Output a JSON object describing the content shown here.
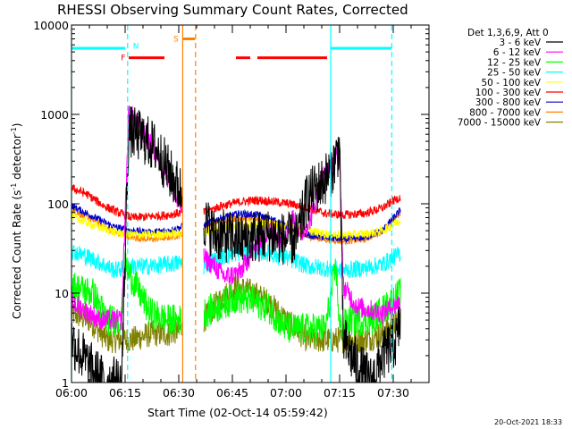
{
  "chart_data": {
    "type": "line",
    "title": "RHESSI Observing Summary Count Rates, Corrected",
    "xlabel": "Start Time (02-Oct-14 05:59:42)",
    "ylabel": "Corrected Count Rate (s⁻¹ detector⁻¹)",
    "ylabel_main": "Corrected Count Rate (s",
    "ylabel_mid": " detector",
    "ylabel_end": ")",
    "ylabel_sup": "-1",
    "y_scale": "log",
    "ylim": [
      1,
      10000
    ],
    "xlim_min": [
      0,
      100
    ],
    "x_ticks": [
      {
        "label": "06:00",
        "min": 0
      },
      {
        "label": "06:15",
        "min": 15
      },
      {
        "label": "06:30",
        "min": 30
      },
      {
        "label": "06:45",
        "min": 45
      },
      {
        "label": "07:00",
        "min": 60
      },
      {
        "label": "07:15",
        "min": 75
      },
      {
        "label": "07:30",
        "min": 90
      }
    ],
    "y_ticks": [
      {
        "label": "1",
        "v": 1
      },
      {
        "label": "10",
        "v": 10
      },
      {
        "label": "100",
        "v": 100
      },
      {
        "label": "1000",
        "v": 1000
      },
      {
        "label": "10000",
        "v": 10000
      }
    ],
    "legend_header": "Det 1,3,6,9, Att 0",
    "legend_position": "right, outside plot",
    "gaps_min": [
      [
        31,
        37
      ]
    ],
    "series": [
      {
        "name": "3 - 6 keV",
        "color": "#000000",
        "noise": 0.3,
        "points": [
          [
            0,
            3
          ],
          [
            5,
            1.5
          ],
          [
            9,
            1
          ],
          [
            14,
            1
          ],
          [
            16,
            650
          ],
          [
            20,
            550
          ],
          [
            24,
            400
          ],
          [
            28,
            200
          ],
          [
            31,
            130
          ],
          [
            37,
            65
          ],
          [
            40,
            45
          ],
          [
            48,
            40
          ],
          [
            55,
            45
          ],
          [
            60,
            40
          ],
          [
            63,
            40
          ],
          [
            66,
            120
          ],
          [
            70,
            170
          ],
          [
            73,
            250
          ],
          [
            75,
            450
          ],
          [
            76,
            3
          ],
          [
            80,
            1.5
          ],
          [
            84,
            1
          ],
          [
            87,
            2
          ],
          [
            91,
            3
          ],
          [
            92,
            5
          ]
        ]
      },
      {
        "name": "6 - 12 keV",
        "color": "#ff00ff",
        "noise": 0.12,
        "points": [
          [
            0,
            8
          ],
          [
            8,
            5
          ],
          [
            14,
            5
          ],
          [
            16,
            1100
          ],
          [
            19,
            700
          ],
          [
            23,
            400
          ],
          [
            27,
            200
          ],
          [
            30,
            95
          ],
          [
            31,
            90
          ],
          [
            37,
            25
          ],
          [
            40,
            20
          ],
          [
            43,
            15
          ],
          [
            47,
            17
          ],
          [
            51,
            30
          ],
          [
            55,
            50
          ],
          [
            59,
            40
          ],
          [
            62,
            70
          ],
          [
            64,
            45
          ],
          [
            67,
            70
          ],
          [
            70,
            200
          ],
          [
            73,
            250
          ],
          [
            75,
            420
          ],
          [
            76,
            12
          ],
          [
            80,
            7
          ],
          [
            87,
            6
          ],
          [
            92,
            8
          ]
        ]
      },
      {
        "name": "12 - 25 keV",
        "color": "#00ff00",
        "noise": 0.18,
        "points": [
          [
            0,
            12
          ],
          [
            6,
            10
          ],
          [
            10,
            5
          ],
          [
            14,
            5
          ],
          [
            15,
            20
          ],
          [
            18,
            12
          ],
          [
            22,
            6
          ],
          [
            27,
            5
          ],
          [
            31,
            5
          ],
          [
            37,
            6
          ],
          [
            41,
            7
          ],
          [
            46,
            9
          ],
          [
            51,
            8
          ],
          [
            55,
            7
          ],
          [
            60,
            4
          ],
          [
            66,
            4
          ],
          [
            71,
            4
          ],
          [
            74,
            20
          ],
          [
            75,
            4
          ],
          [
            78,
            5
          ],
          [
            84,
            5
          ],
          [
            88,
            7
          ],
          [
            92,
            10
          ]
        ]
      },
      {
        "name": "25 - 50 keV",
        "color": "#00ffff",
        "noise": 0.1,
        "points": [
          [
            0,
            30
          ],
          [
            6,
            24
          ],
          [
            12,
            18
          ],
          [
            17,
            20
          ],
          [
            22,
            20
          ],
          [
            27,
            21
          ],
          [
            31,
            22
          ],
          [
            37,
            20
          ],
          [
            41,
            25
          ],
          [
            46,
            28
          ],
          [
            51,
            30
          ],
          [
            55,
            28
          ],
          [
            60,
            25
          ],
          [
            66,
            20
          ],
          [
            71,
            19
          ],
          [
            76,
            18
          ],
          [
            82,
            19
          ],
          [
            87,
            21
          ],
          [
            92,
            28
          ]
        ]
      },
      {
        "name": "50 - 100 keV",
        "color": "#ffff00",
        "noise": 0.05,
        "points": [
          [
            0,
            72
          ],
          [
            6,
            58
          ],
          [
            12,
            48
          ],
          [
            17,
            45
          ],
          [
            22,
            45
          ],
          [
            27,
            46
          ],
          [
            31,
            47
          ],
          [
            37,
            47
          ],
          [
            42,
            55
          ],
          [
            47,
            58
          ],
          [
            52,
            60
          ],
          [
            57,
            60
          ],
          [
            61,
            55
          ],
          [
            66,
            50
          ],
          [
            71,
            46
          ],
          [
            76,
            45
          ],
          [
            82,
            46
          ],
          [
            87,
            50
          ],
          [
            92,
            65
          ]
        ]
      },
      {
        "name": "100 - 300 keV",
        "color": "#ff0000",
        "noise": 0.05,
        "points": [
          [
            0,
            150
          ],
          [
            4,
            130
          ],
          [
            9,
            95
          ],
          [
            13,
            80
          ],
          [
            17,
            70
          ],
          [
            22,
            72
          ],
          [
            27,
            75
          ],
          [
            31,
            80
          ],
          [
            37,
            80
          ],
          [
            42,
            95
          ],
          [
            47,
            105
          ],
          [
            52,
            110
          ],
          [
            57,
            105
          ],
          [
            61,
            100
          ],
          [
            66,
            90
          ],
          [
            71,
            78
          ],
          [
            76,
            75
          ],
          [
            82,
            78
          ],
          [
            87,
            90
          ],
          [
            92,
            120
          ]
        ]
      },
      {
        "name": "300 - 800 keV",
        "color": "#0000cc",
        "noise": 0.04,
        "points": [
          [
            0,
            95
          ],
          [
            6,
            72
          ],
          [
            12,
            55
          ],
          [
            17,
            50
          ],
          [
            22,
            48
          ],
          [
            27,
            50
          ],
          [
            31,
            55
          ],
          [
            37,
            58
          ],
          [
            42,
            70
          ],
          [
            47,
            78
          ],
          [
            52,
            75
          ],
          [
            57,
            65
          ],
          [
            61,
            55
          ],
          [
            66,
            45
          ],
          [
            71,
            42
          ],
          [
            76,
            40
          ],
          [
            82,
            42
          ],
          [
            87,
            50
          ],
          [
            92,
            85
          ]
        ]
      },
      {
        "name": "800 - 7000 keV",
        "color": "#ff8000",
        "noise": 0.04,
        "points": [
          [
            0,
            85
          ],
          [
            6,
            65
          ],
          [
            12,
            48
          ],
          [
            17,
            42
          ],
          [
            22,
            40
          ],
          [
            27,
            42
          ],
          [
            31,
            45
          ],
          [
            37,
            55
          ],
          [
            42,
            65
          ],
          [
            47,
            70
          ],
          [
            52,
            68
          ],
          [
            57,
            60
          ],
          [
            61,
            50
          ],
          [
            66,
            43
          ],
          [
            71,
            40
          ],
          [
            76,
            38
          ],
          [
            82,
            40
          ],
          [
            87,
            50
          ],
          [
            92,
            80
          ]
        ]
      },
      {
        "name": "7000 - 15000 keV",
        "color": "#808000",
        "noise": 0.15,
        "points": [
          [
            0,
            6
          ],
          [
            5,
            5
          ],
          [
            10,
            3
          ],
          [
            14,
            3
          ],
          [
            17,
            3
          ],
          [
            22,
            3.5
          ],
          [
            27,
            3.5
          ],
          [
            31,
            4
          ],
          [
            37,
            5
          ],
          [
            41,
            8
          ],
          [
            46,
            12
          ],
          [
            51,
            10
          ],
          [
            55,
            8
          ],
          [
            60,
            5
          ],
          [
            66,
            3
          ],
          [
            71,
            3
          ],
          [
            76,
            3
          ],
          [
            82,
            3
          ],
          [
            87,
            3.5
          ],
          [
            92,
            5
          ]
        ]
      }
    ],
    "flags": [
      {
        "label": "",
        "color": "#00ffff",
        "kind": "bar",
        "level": 5500,
        "ranges": [
          [
            0,
            15
          ],
          [
            72.5,
            89.5
          ]
        ]
      },
      {
        "label": "",
        "color": "#ff0000",
        "kind": "bar",
        "level": 4300,
        "ranges": [
          [
            16,
            26
          ],
          [
            46,
            50
          ],
          [
            52,
            71.5
          ]
        ]
      },
      {
        "label": "",
        "color": "#ff8000",
        "kind": "bar",
        "level": 7000,
        "ranges": [
          [
            31,
            34.5
          ]
        ]
      }
    ],
    "flag_letters": [
      {
        "letter": "F",
        "color": "#ff0000",
        "min": 13.8,
        "v": 4300
      },
      {
        "letter": "N",
        "color": "#00ffff",
        "min": 17.2,
        "v": 5800
      },
      {
        "letter": "S",
        "color": "#ff8000",
        "min": 28.5,
        "v": 7000
      }
    ],
    "vlines": [
      {
        "min": 0,
        "color": "#00ffff",
        "style": "solid"
      },
      {
        "min": 15.7,
        "color": "#00ffff",
        "style": "dashed"
      },
      {
        "min": 31.1,
        "color": "#ff8000",
        "style": "solid"
      },
      {
        "min": 34.7,
        "color": "#ff8000",
        "style": "dashed"
      },
      {
        "min": 72.5,
        "color": "#00ffff",
        "style": "solid"
      },
      {
        "min": 89.6,
        "color": "#00ffff",
        "style": "dashed"
      }
    ],
    "footer_date": "20-Oct-2021 18:33"
  }
}
